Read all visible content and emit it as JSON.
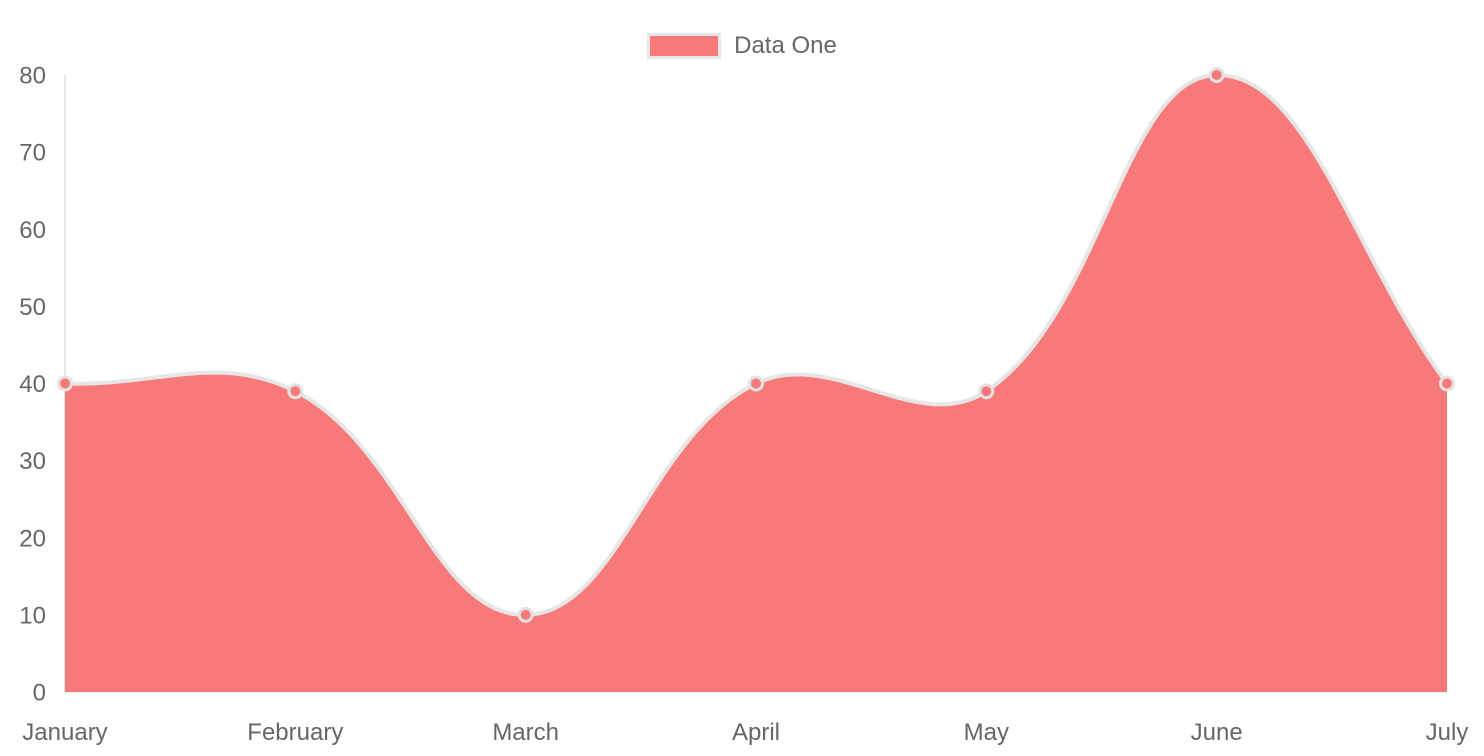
{
  "chart_data": {
    "type": "area",
    "title": "",
    "categories": [
      "January",
      "February",
      "March",
      "April",
      "May",
      "June",
      "July"
    ],
    "series": [
      {
        "name": "Data One",
        "values": [
          40,
          39,
          10,
          40,
          39,
          80,
          40
        ],
        "fill_color": "#f87979",
        "line_color": "#e6e6e6",
        "point_fill": "#f87979",
        "point_stroke": "#e2e2e2"
      }
    ],
    "xlabel": "",
    "ylabel": "",
    "ylim": [
      0,
      80
    ],
    "y_ticks": [
      0,
      10,
      20,
      30,
      40,
      50,
      60,
      70,
      80
    ],
    "grid": false,
    "smooth": true,
    "line_tension": 0.4,
    "legend_position": "top",
    "axis_line_color": "#e6e6e6",
    "text_color": "#666666",
    "background": "#ffffff"
  }
}
